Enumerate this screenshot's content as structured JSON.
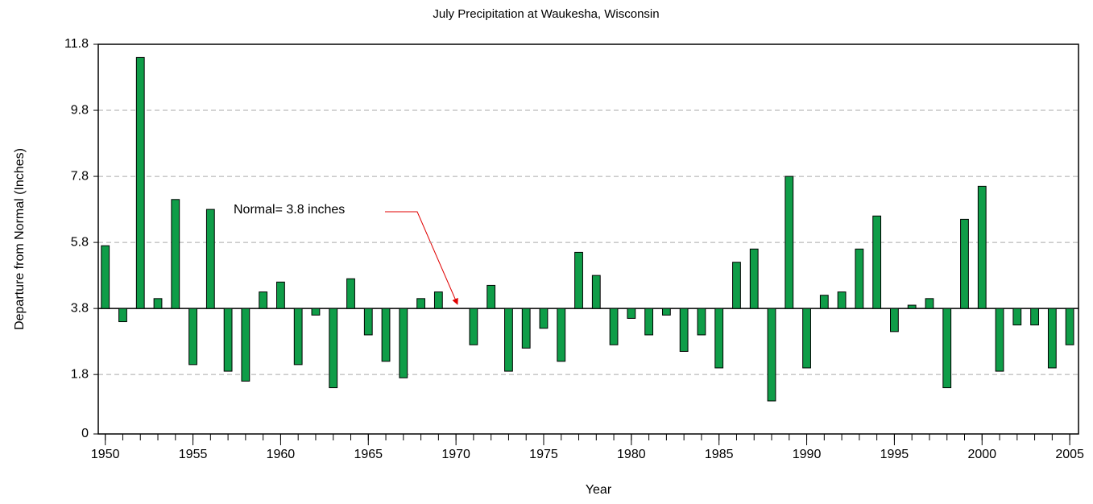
{
  "chart_data": {
    "type": "bar",
    "title": "July Precipitation at Waukesha, Wisconsin",
    "xlabel": "Year",
    "ylabel": "Departure from Normal (Inches)",
    "annotation": "Normal= 3.8 inches",
    "baseline": 3.8,
    "x": [
      1950,
      1951,
      1952,
      1953,
      1954,
      1955,
      1956,
      1957,
      1958,
      1959,
      1960,
      1961,
      1962,
      1963,
      1964,
      1965,
      1966,
      1967,
      1968,
      1969,
      1970,
      1971,
      1972,
      1973,
      1974,
      1975,
      1976,
      1977,
      1978,
      1979,
      1980,
      1981,
      1982,
      1983,
      1984,
      1985,
      1986,
      1987,
      1988,
      1989,
      1990,
      1991,
      1992,
      1993,
      1994,
      1995,
      1996,
      1997,
      1998,
      1999,
      2000,
      2001,
      2002,
      2003,
      2004,
      2005
    ],
    "values": [
      5.7,
      3.4,
      11.4,
      4.1,
      7.1,
      2.1,
      6.8,
      1.9,
      1.6,
      4.3,
      4.6,
      2.1,
      3.6,
      1.4,
      4.7,
      3.0,
      2.2,
      1.7,
      4.1,
      4.3,
      3.8,
      2.7,
      4.5,
      1.9,
      2.6,
      3.2,
      2.2,
      5.5,
      4.8,
      2.7,
      3.5,
      3.0,
      3.6,
      2.5,
      3.0,
      2.0,
      5.2,
      5.6,
      1.0,
      7.8,
      2.0,
      4.2,
      4.3,
      5.6,
      6.6,
      3.1,
      3.9,
      4.1,
      1.4,
      6.5,
      7.5,
      1.9,
      3.3,
      3.3,
      2.0,
      2.7
    ],
    "color": "#0f9d48",
    "xlim": [
      1949.6,
      2005.5
    ],
    "xticks": [
      1950,
      1955,
      1960,
      1965,
      1970,
      1975,
      1980,
      1985,
      1990,
      1995,
      2000,
      2005
    ],
    "ylim": [
      0,
      11.8
    ],
    "yticks": [
      0,
      1.8,
      3.8,
      5.8,
      7.8,
      9.8,
      11.8
    ],
    "grid": true
  }
}
